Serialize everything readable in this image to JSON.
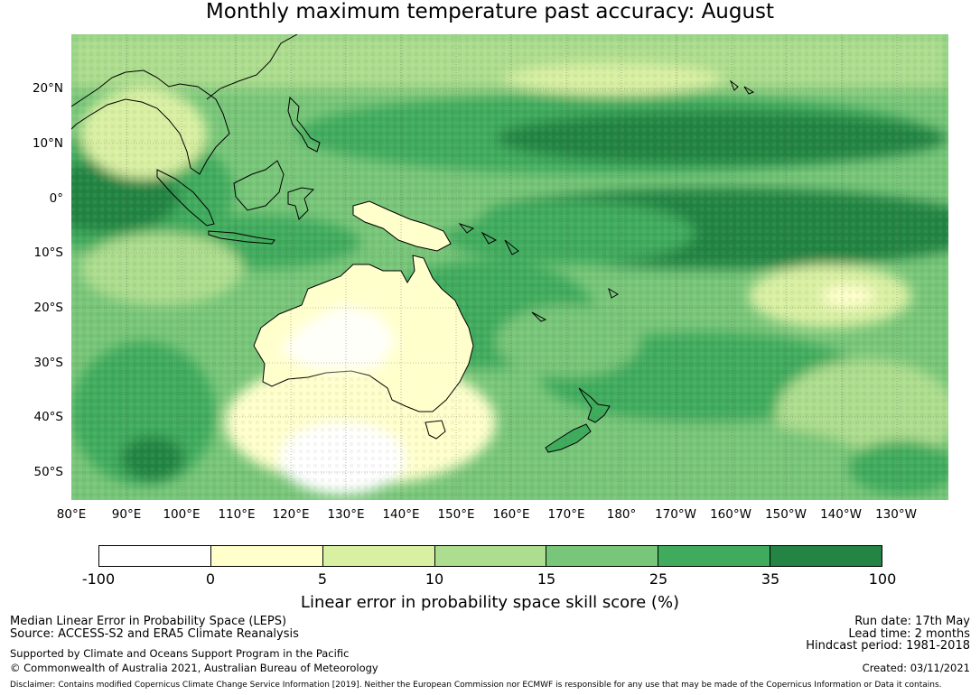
{
  "title": "Monthly maximum temperature past accuracy: August",
  "map": {
    "latitude_labels": [
      "20°N",
      "10°N",
      "0°",
      "10°S",
      "20°S",
      "30°S",
      "40°S",
      "50°S"
    ],
    "longitude_labels": [
      "80°E",
      "90°E",
      "100°E",
      "110°E",
      "120°E",
      "130°E",
      "140°E",
      "150°E",
      "160°E",
      "170°E",
      "180°",
      "170°W",
      "160°W",
      "150°W",
      "140°W",
      "130°W"
    ]
  },
  "colorbar": {
    "ticks": [
      "-100",
      "0",
      "5",
      "10",
      "15",
      "25",
      "35",
      "100"
    ],
    "colors": [
      "#ffffff",
      "#ffffcc",
      "#d9f0a3",
      "#addd8e",
      "#78c679",
      "#41ab5d",
      "#238443"
    ],
    "label": "Linear error in probability space skill score (%)"
  },
  "footer": {
    "left_line1": "Median Linear Error in Probability Space (LEPS)",
    "left_line2": "Source: ACCESS-S2 and ERA5 Climate Reanalysis",
    "left_line3": "Supported by Climate and Oceans Support Program in the Pacific",
    "left_line4": "© Commonwealth of Australia 2021, Australian Bureau of Meteorology",
    "right_line1": "Run date: 17th May",
    "right_line2": "Lead time: 2 months",
    "right_line3": "Hindcast period: 1981-2018",
    "right_line4": "Created: 03/11/2021",
    "disclaimer": "Disclaimer: Contains modified Copernicus Climate Change Service Information [2019]. Neither the European Commission nor ECMWF is responsible for any use that may be made of the Copernicus Information or Data it contains."
  }
}
